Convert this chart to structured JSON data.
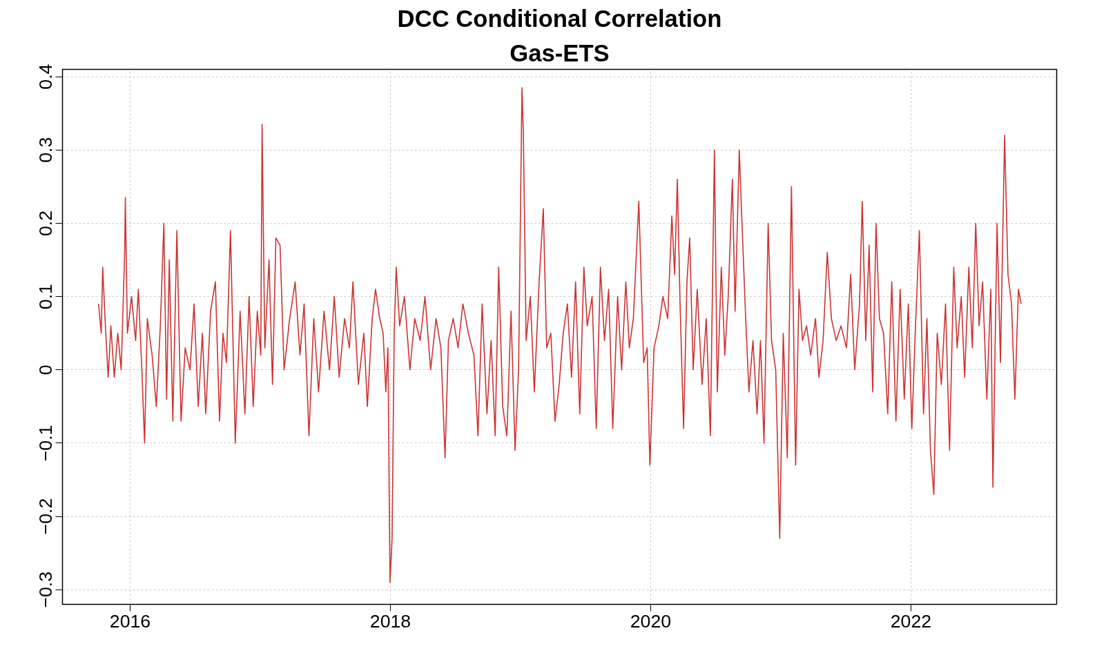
{
  "chart_data": {
    "type": "line",
    "title": "DCC Conditional Correlation",
    "subtitle": "Gas-ETS",
    "xlim": [
      2015.48,
      2023.12
    ],
    "xticks": [
      2016,
      2018,
      2020,
      2022
    ],
    "ylim": [
      -0.32,
      0.41
    ],
    "yticks": [
      -0.3,
      -0.2,
      -0.1,
      0.0,
      0.1,
      0.2,
      0.3,
      0.4
    ],
    "grid": true,
    "line_style": "solid",
    "marker": "none",
    "x": [
      2015.757,
      2015.778,
      2015.789,
      2015.81,
      2015.831,
      2015.852,
      2015.878,
      2015.905,
      2015.931,
      2015.958,
      2015.963,
      2015.979,
      2016.011,
      2016.042,
      2016.063,
      2016.09,
      2016.111,
      2016.132,
      2016.169,
      2016.201,
      2016.232,
      2016.259,
      2016.28,
      2016.301,
      2016.328,
      2016.359,
      2016.391,
      2016.423,
      2016.46,
      2016.491,
      2016.523,
      2016.555,
      2016.581,
      2016.618,
      2016.655,
      2016.687,
      2016.713,
      2016.74,
      2016.771,
      2016.808,
      2016.845,
      2016.882,
      2016.914,
      2016.946,
      2016.977,
      2017.004,
      2017.014,
      2017.035,
      2017.067,
      2017.094,
      2017.12,
      2017.152,
      2017.183,
      2017.226,
      2017.268,
      2017.305,
      2017.337,
      2017.374,
      2017.411,
      2017.448,
      2017.49,
      2017.532,
      2017.569,
      2017.606,
      2017.648,
      2017.685,
      2017.712,
      2017.754,
      2017.796,
      2017.823,
      2017.86,
      2017.886,
      2017.918,
      2017.944,
      2017.965,
      2017.981,
      2017.997,
      2018.013,
      2018.029,
      2018.045,
      2018.071,
      2018.108,
      2018.15,
      2018.187,
      2018.229,
      2018.266,
      2018.309,
      2018.351,
      2018.388,
      2018.42,
      2018.446,
      2018.483,
      2018.52,
      2018.557,
      2018.599,
      2018.642,
      2018.673,
      2018.705,
      2018.742,
      2018.774,
      2018.805,
      2018.832,
      2018.863,
      2018.895,
      2018.927,
      2018.958,
      2018.985,
      2019.011,
      2019.022,
      2019.043,
      2019.075,
      2019.106,
      2019.143,
      2019.175,
      2019.201,
      2019.233,
      2019.265,
      2019.297,
      2019.328,
      2019.36,
      2019.392,
      2019.423,
      2019.455,
      2019.487,
      2019.513,
      2019.55,
      2019.582,
      2019.614,
      2019.645,
      2019.677,
      2019.709,
      2019.746,
      2019.777,
      2019.809,
      2019.836,
      2019.867,
      2019.909,
      2019.946,
      2019.973,
      2019.994,
      2020.026,
      2020.063,
      2020.094,
      2020.131,
      2020.163,
      2020.184,
      2020.205,
      2020.226,
      2020.253,
      2020.279,
      2020.3,
      2020.327,
      2020.358,
      2020.395,
      2020.427,
      2020.459,
      2020.49,
      2020.512,
      2020.543,
      2020.57,
      2020.596,
      2020.628,
      2020.649,
      2020.681,
      2020.702,
      2020.728,
      2020.755,
      2020.786,
      2020.818,
      2020.844,
      2020.871,
      2020.903,
      2020.929,
      2020.961,
      2020.992,
      2021.019,
      2021.05,
      2021.082,
      2021.114,
      2021.14,
      2021.167,
      2021.198,
      2021.23,
      2021.267,
      2021.293,
      2021.325,
      2021.357,
      2021.389,
      2021.426,
      2021.463,
      2021.505,
      2021.537,
      2021.568,
      2021.605,
      2021.626,
      2021.653,
      2021.679,
      2021.706,
      2021.732,
      2021.758,
      2021.79,
      2021.822,
      2021.853,
      2021.885,
      2021.917,
      2021.949,
      2021.98,
      2022.007,
      2022.033,
      2022.065,
      2022.097,
      2022.123,
      2022.15,
      2022.176,
      2022.202,
      2022.234,
      2022.266,
      2022.297,
      2022.329,
      2022.355,
      2022.387,
      2022.413,
      2022.445,
      2022.472,
      2022.498,
      2022.524,
      2022.551,
      2022.583,
      2022.614,
      2022.63,
      2022.662,
      2022.688,
      2022.72,
      2022.746,
      2022.773,
      2022.799,
      2022.826,
      2022.847
    ],
    "series": [
      {
        "color": "#cc3333",
        "values": [
          0.09,
          0.05,
          0.14,
          0.06,
          -0.01,
          0.06,
          -0.01,
          0.05,
          0.0,
          0.16,
          0.235,
          0.05,
          0.1,
          0.04,
          0.11,
          0.0,
          -0.1,
          0.07,
          0.02,
          -0.05,
          0.06,
          0.2,
          -0.04,
          0.15,
          -0.07,
          0.19,
          -0.07,
          0.03,
          0.0,
          0.09,
          -0.05,
          0.05,
          -0.06,
          0.08,
          0.12,
          -0.07,
          0.05,
          0.01,
          0.19,
          -0.1,
          0.08,
          -0.06,
          0.1,
          -0.05,
          0.08,
          0.02,
          0.335,
          0.03,
          0.15,
          -0.02,
          0.18,
          0.17,
          0.0,
          0.07,
          0.12,
          0.02,
          0.09,
          -0.09,
          0.07,
          -0.03,
          0.08,
          0.0,
          0.1,
          -0.01,
          0.07,
          0.03,
          0.12,
          -0.02,
          0.05,
          -0.05,
          0.07,
          0.11,
          0.07,
          0.05,
          -0.03,
          0.03,
          -0.29,
          -0.23,
          0.05,
          0.14,
          0.06,
          0.1,
          0.0,
          0.07,
          0.04,
          0.1,
          0.0,
          0.07,
          0.03,
          -0.12,
          0.04,
          0.07,
          0.03,
          0.09,
          0.05,
          0.02,
          -0.09,
          0.09,
          -0.06,
          0.04,
          -0.09,
          0.14,
          -0.05,
          -0.09,
          0.08,
          -0.11,
          0.0,
          0.385,
          0.32,
          0.04,
          0.1,
          -0.03,
          0.12,
          0.22,
          0.03,
          0.05,
          -0.07,
          -0.02,
          0.05,
          0.09,
          -0.01,
          0.12,
          -0.06,
          0.14,
          0.06,
          0.1,
          -0.08,
          0.14,
          0.04,
          0.11,
          -0.08,
          0.1,
          0.0,
          0.12,
          0.03,
          0.07,
          0.23,
          0.01,
          0.03,
          -0.13,
          0.03,
          0.06,
          0.1,
          0.07,
          0.21,
          0.13,
          0.26,
          0.09,
          -0.08,
          0.12,
          0.18,
          0.0,
          0.11,
          -0.02,
          0.07,
          -0.09,
          0.3,
          -0.03,
          0.14,
          0.02,
          0.1,
          0.26,
          0.08,
          0.3,
          0.2,
          0.08,
          -0.03,
          0.04,
          -0.06,
          0.04,
          -0.1,
          0.2,
          0.04,
          0.0,
          -0.23,
          0.05,
          -0.12,
          0.25,
          -0.13,
          0.11,
          0.04,
          0.06,
          0.02,
          0.07,
          -0.01,
          0.04,
          0.16,
          0.07,
          0.04,
          0.06,
          0.03,
          0.13,
          0.0,
          0.09,
          0.23,
          0.04,
          0.17,
          -0.03,
          0.2,
          0.07,
          0.05,
          -0.06,
          0.12,
          -0.07,
          0.11,
          -0.04,
          0.09,
          -0.08,
          0.05,
          0.19,
          -0.06,
          0.07,
          -0.11,
          -0.17,
          0.05,
          -0.02,
          0.09,
          -0.11,
          0.14,
          0.03,
          0.1,
          -0.01,
          0.14,
          0.03,
          0.2,
          0.06,
          0.12,
          -0.04,
          0.11,
          -0.16,
          0.2,
          0.01,
          0.32,
          0.13,
          0.09,
          -0.04,
          0.11,
          0.09
        ]
      }
    ]
  }
}
